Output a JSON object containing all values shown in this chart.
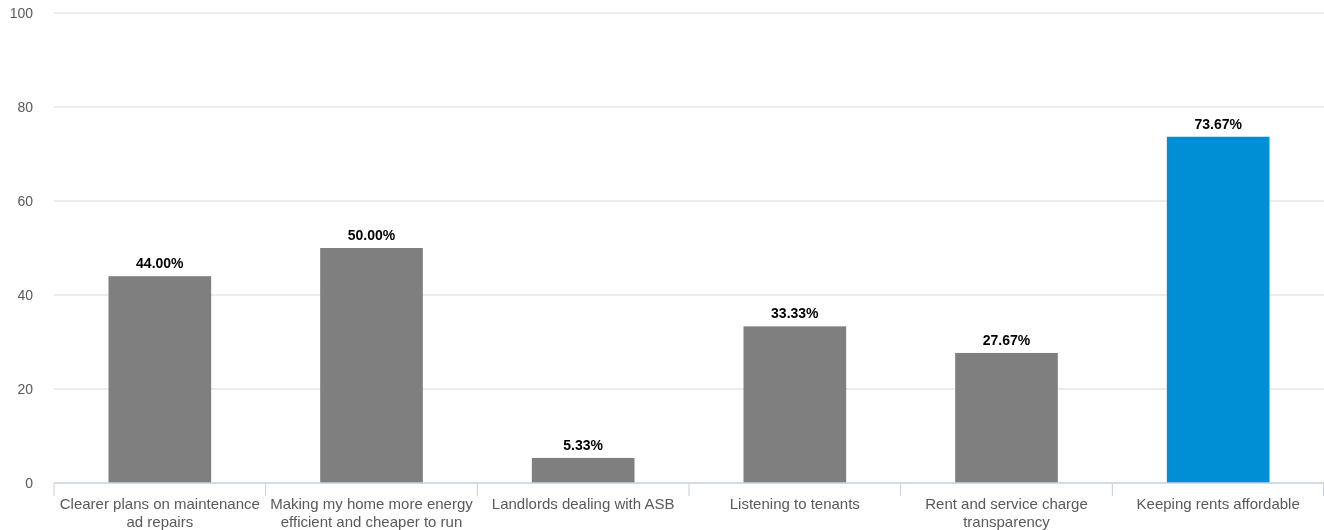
{
  "chart_data": {
    "type": "bar",
    "categories": [
      "Clearer plans on maintenance ad repairs",
      "Making my home more energy efficient and cheaper to run",
      "Landlords dealing with ASB",
      "Listening to tenants",
      "Rent and service charge transparency",
      "Keeping rents affordable"
    ],
    "values": [
      44,
      50,
      5.33,
      33.33,
      27.67,
      73.67
    ],
    "colors": [
      "#7f7f7f",
      "#7f7f7f",
      "#7f7f7f",
      "#7f7f7f",
      "#7f7f7f",
      "#008fd5"
    ],
    "value_labels": [
      "44.00%",
      "50.00%",
      "5.33%",
      "33.33%",
      "27.67%",
      "73.67%"
    ],
    "ylim": [
      0,
      100
    ],
    "yticks": [
      0,
      20,
      40,
      60,
      80,
      100
    ],
    "grid": "y"
  }
}
